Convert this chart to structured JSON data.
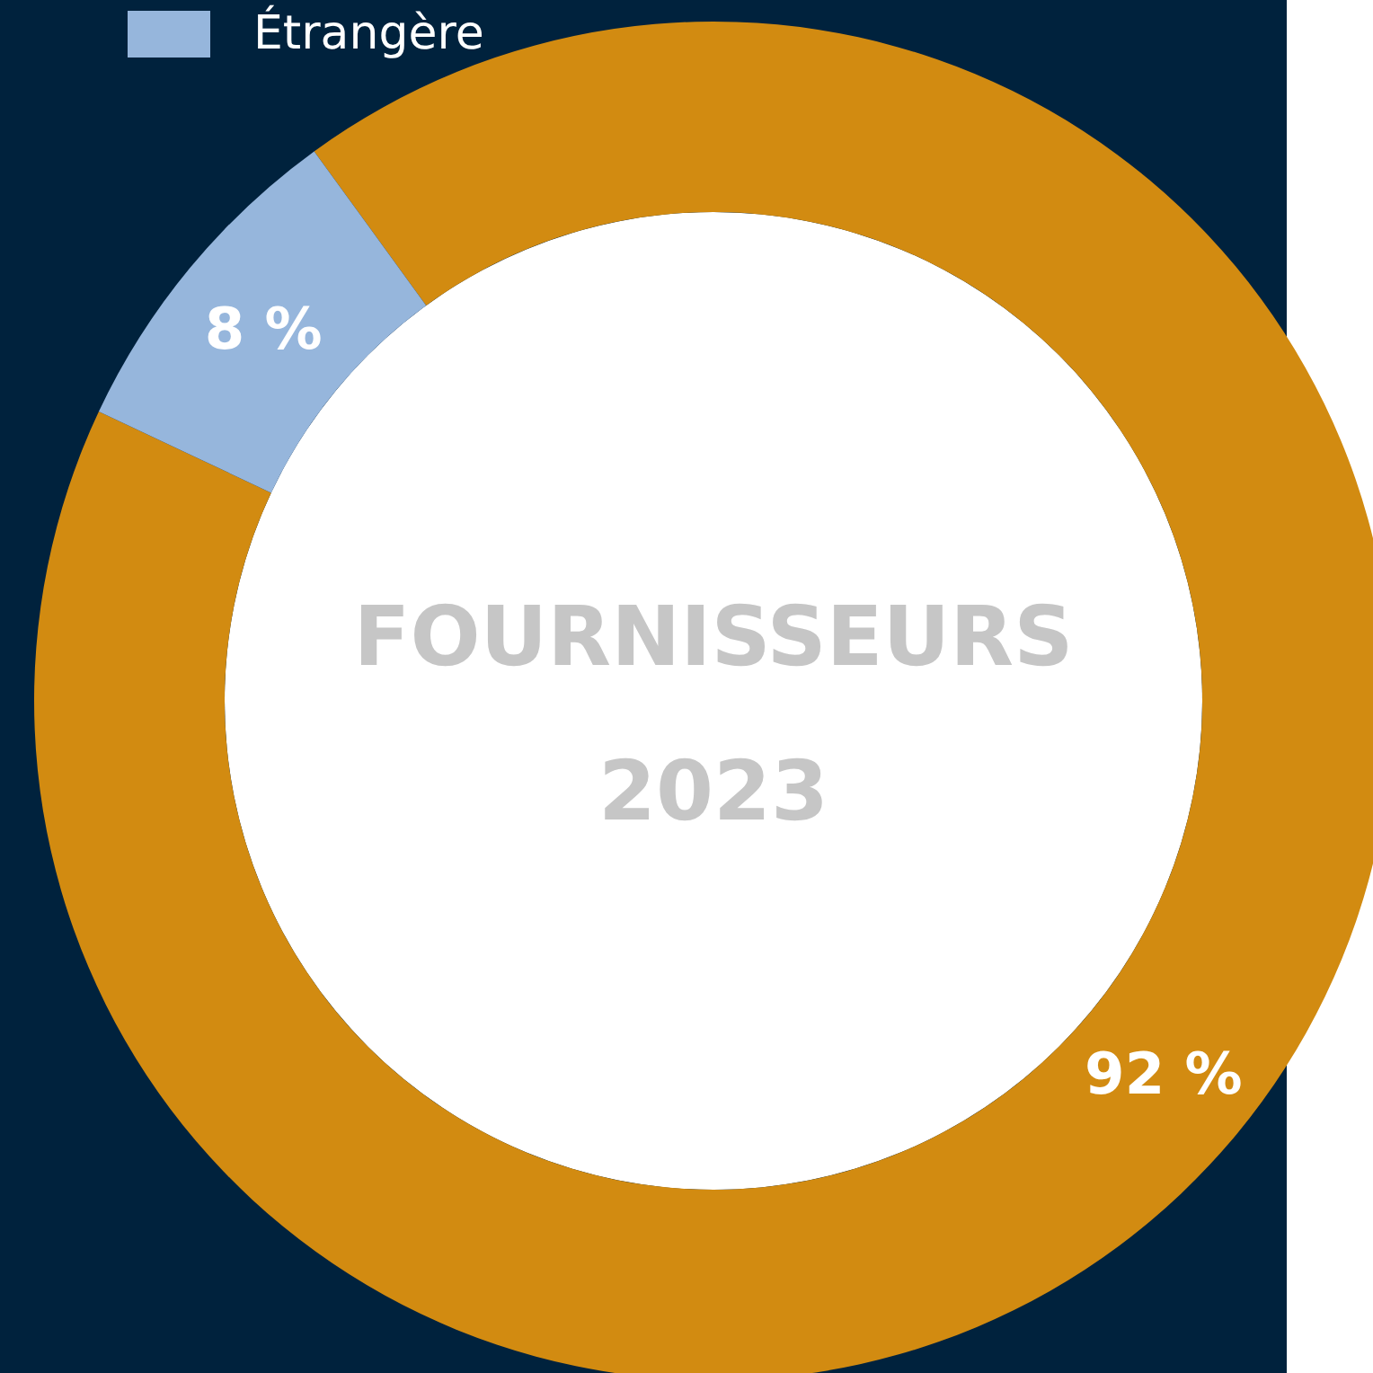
{
  "chart_data": {
    "type": "donut",
    "title": "FOURNISSEURS",
    "subtitle": "2023",
    "categories": [
      null,
      "Étrangère"
    ],
    "values": [
      92,
      8
    ],
    "colors": [
      "#d28b11",
      "#96b6dc"
    ],
    "value_labels": [
      "92 %",
      "8 %"
    ],
    "legend": "top left"
  }
}
